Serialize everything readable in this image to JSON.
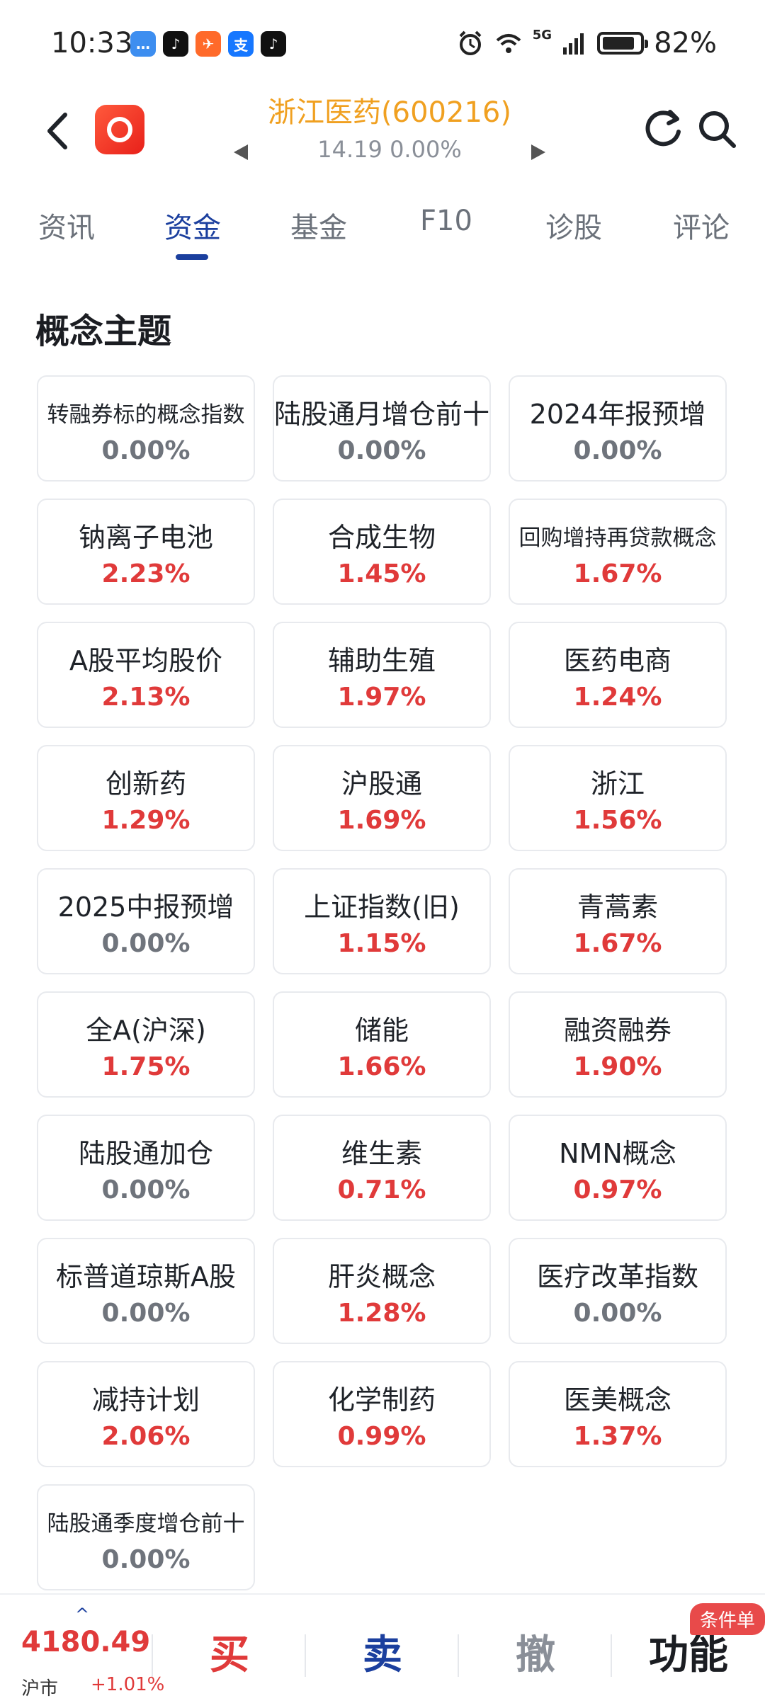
{
  "status_bar": {
    "time": "10:33",
    "network": "5G",
    "battery": "82%"
  },
  "header": {
    "stock_title": "浙江医药(600216)",
    "price_line": "14.19  0.00%"
  },
  "tabs": [
    {
      "label": "资讯"
    },
    {
      "label": "资金"
    },
    {
      "label": "基金"
    },
    {
      "label": "F10"
    },
    {
      "label": "诊股"
    },
    {
      "label": "评论"
    }
  ],
  "section": {
    "title": "概念主题"
  },
  "concepts": [
    {
      "name": "转融券标的概念指数",
      "pct": "0.00%"
    },
    {
      "name": "陆股通月增仓前十",
      "pct": "0.00%"
    },
    {
      "name": "2024年报预增",
      "pct": "0.00%"
    },
    {
      "name": "钠离子电池",
      "pct": "2.23%"
    },
    {
      "name": "合成生物",
      "pct": "1.45%"
    },
    {
      "name": "回购增持再贷款概念",
      "pct": "1.67%"
    },
    {
      "name": "A股平均股价",
      "pct": "2.13%"
    },
    {
      "name": "辅助生殖",
      "pct": "1.97%"
    },
    {
      "name": "医药电商",
      "pct": "1.24%"
    },
    {
      "name": "创新药",
      "pct": "1.29%"
    },
    {
      "name": "沪股通",
      "pct": "1.69%"
    },
    {
      "name": "浙江",
      "pct": "1.56%"
    },
    {
      "name": "2025中报预增",
      "pct": "0.00%"
    },
    {
      "name": "上证指数(旧)",
      "pct": "1.15%"
    },
    {
      "name": "青蒿素",
      "pct": "1.67%"
    },
    {
      "name": "全A(沪深)",
      "pct": "1.75%"
    },
    {
      "name": "储能",
      "pct": "1.66%"
    },
    {
      "name": "融资融券",
      "pct": "1.90%"
    },
    {
      "name": "陆股通加仓",
      "pct": "0.00%"
    },
    {
      "name": "维生素",
      "pct": "0.71%"
    },
    {
      "name": "NMN概念",
      "pct": "0.97%"
    },
    {
      "name": "标普道琼斯A股",
      "pct": "0.00%"
    },
    {
      "name": "肝炎概念",
      "pct": "1.28%"
    },
    {
      "name": "医疗改革指数",
      "pct": "0.00%"
    },
    {
      "name": "减持计划",
      "pct": "2.06%"
    },
    {
      "name": "化学制药",
      "pct": "0.99%"
    },
    {
      "name": "医美概念",
      "pct": "1.37%"
    },
    {
      "name": "陆股通季度增仓前十",
      "pct": "0.00%"
    }
  ],
  "bottom_bar": {
    "index_value": "4180.49",
    "index_name": "沪市",
    "index_change": "+1.01%",
    "buy": "买",
    "sell": "卖",
    "cancel": "撤",
    "function": "功能",
    "badge": "条件单"
  },
  "colors": {
    "up": "#e03a3a",
    "flat": "#6f747c",
    "accent": "#1b3f9e",
    "title": "#f0a020"
  }
}
